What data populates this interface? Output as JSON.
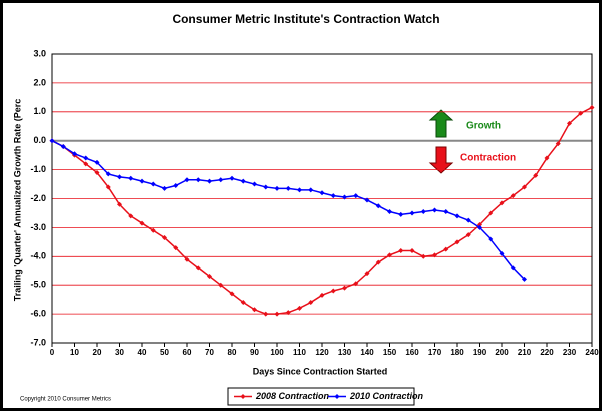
{
  "chart_data": {
    "type": "line",
    "title": "Consumer Metric Institute's Contraction Watch",
    "y_label": "Trailing 'Quarter' Annualized Growth Rate (Perc",
    "x_label": "Days Since Contraction Started",
    "annotations": [
      "Growth",
      "Contraction"
    ],
    "copyright": "Copyright 2010 Consumer Metrics",
    "legend": "bottom",
    "grid": true,
    "xlim": [
      0,
      240
    ],
    "xticks": [
      0,
      10,
      20,
      30,
      40,
      50,
      60,
      70,
      80,
      90,
      100,
      110,
      120,
      130,
      140,
      150,
      160,
      170,
      180,
      190,
      200,
      210,
      220,
      230,
      240
    ],
    "ylim": [
      -7,
      3
    ],
    "yticks": [
      {
        "value": 3,
        "label": "3.0"
      },
      {
        "value": 2,
        "label": "2.0"
      },
      {
        "value": 1,
        "label": "1.0"
      },
      {
        "value": 0,
        "label": "0.0"
      },
      {
        "value": -1,
        "label": "-1.0"
      },
      {
        "value": -2,
        "label": "-2.0"
      },
      {
        "value": -3,
        "label": "-3.0"
      },
      {
        "value": -4,
        "label": "-4.0"
      },
      {
        "value": -5,
        "label": "-5.0"
      },
      {
        "value": -6,
        "label": "-6.0"
      },
      {
        "value": -7,
        "label": "-7.0"
      }
    ],
    "series": [
      {
        "name": "2008 Contraction",
        "color": "#e8101a",
        "x": [
          0,
          5,
          10,
          15,
          20,
          25,
          30,
          35,
          40,
          45,
          50,
          55,
          60,
          65,
          70,
          75,
          80,
          85,
          90,
          95,
          100,
          105,
          110,
          115,
          120,
          125,
          130,
          135,
          140,
          145,
          150,
          155,
          160,
          165,
          170,
          175,
          180,
          185,
          190,
          195,
          200,
          205,
          210,
          215,
          220,
          225,
          230,
          235,
          240
        ],
        "values": [
          0,
          -0.2,
          -0.5,
          -0.8,
          -1.1,
          -1.6,
          -2.2,
          -2.6,
          -2.85,
          -3.1,
          -3.35,
          -3.7,
          -4.1,
          -4.4,
          -4.7,
          -5.0,
          -5.3,
          -5.6,
          -5.85,
          -6.0,
          -6.0,
          -5.95,
          -5.8,
          -5.6,
          -5.35,
          -5.2,
          -5.1,
          -4.95,
          -4.6,
          -4.2,
          -3.95,
          -3.8,
          -3.8,
          -4.0,
          -3.95,
          -3.75,
          -3.5,
          -3.25,
          -2.9,
          -2.5,
          -2.15,
          -1.9,
          -1.6,
          -1.2,
          -0.6,
          -0.1,
          0.6,
          0.95,
          1.15
        ]
      },
      {
        "name": "2010 Contraction",
        "color": "#0000ff",
        "x": [
          0,
          5,
          10,
          15,
          20,
          25,
          30,
          35,
          40,
          45,
          50,
          55,
          60,
          65,
          70,
          75,
          80,
          85,
          90,
          95,
          100,
          105,
          110,
          115,
          120,
          125,
          130,
          135,
          140,
          145,
          150,
          155,
          160,
          165,
          170,
          175,
          180,
          185,
          190,
          195,
          200,
          205,
          210
        ],
        "values": [
          0,
          -0.2,
          -0.45,
          -0.6,
          -0.75,
          -1.15,
          -1.25,
          -1.3,
          -1.4,
          -1.5,
          -1.65,
          -1.55,
          -1.35,
          -1.35,
          -1.4,
          -1.35,
          -1.3,
          -1.4,
          -1.5,
          -1.6,
          -1.65,
          -1.65,
          -1.7,
          -1.7,
          -1.8,
          -1.9,
          -1.95,
          -1.9,
          -2.05,
          -2.25,
          -2.45,
          -2.55,
          -2.5,
          -2.45,
          -2.4,
          -2.45,
          -2.6,
          -2.75,
          -3.0,
          -3.4,
          -3.9,
          -4.4,
          -4.8
        ]
      }
    ]
  }
}
